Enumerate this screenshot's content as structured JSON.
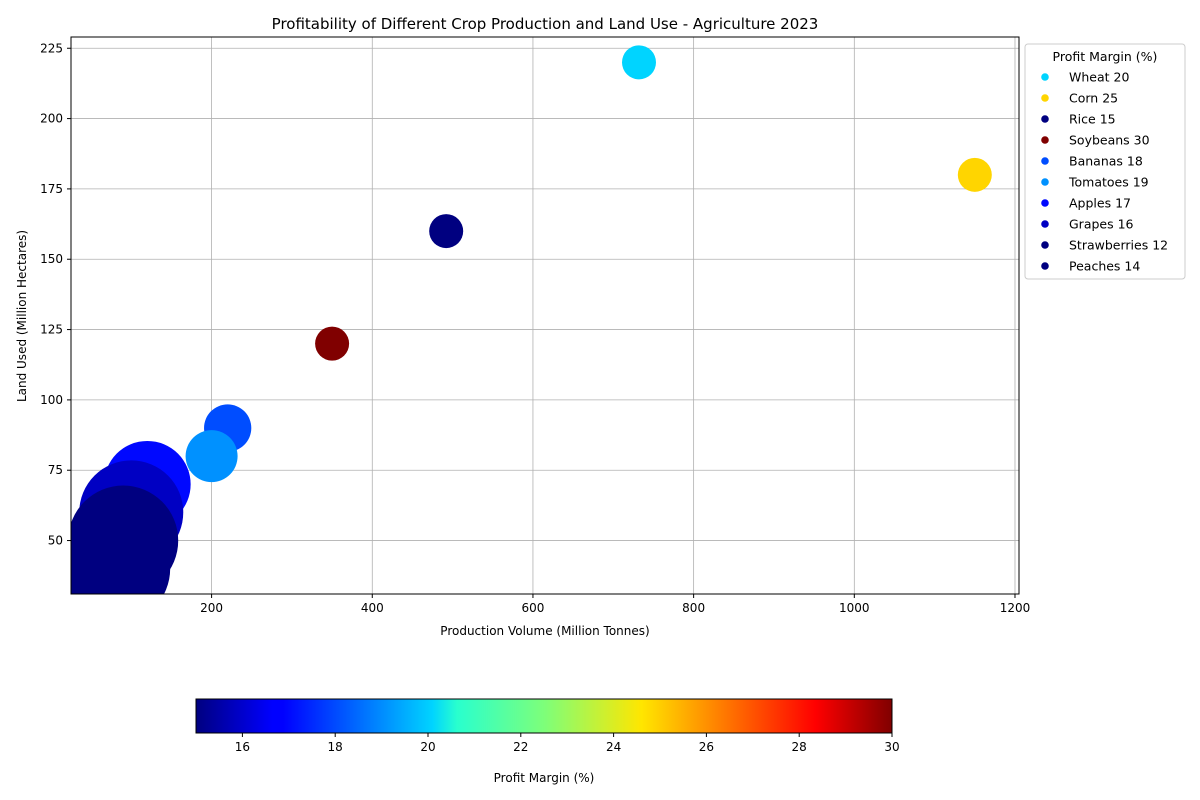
{
  "chart_data": {
    "type": "scatter",
    "title": "Profitability of Different Crop Production and Land Use - Agriculture 2023",
    "xlabel": "Production Volume (Million Tonnes)",
    "ylabel": "Land Used (Million Hectares)",
    "xlim": [
      25,
      1205
    ],
    "ylim": [
      31,
      229
    ],
    "xticks": [
      200,
      400,
      600,
      800,
      1000,
      1200
    ],
    "yticks": [
      50,
      75,
      100,
      125,
      150,
      175,
      200,
      225
    ],
    "grid": true,
    "legend": {
      "title": "Profit Margin (%)",
      "placement": "outside-top-right",
      "entries": [
        "Wheat 20",
        "Corn 25",
        "Rice 15",
        "Soybeans 30",
        "Bananas 18",
        "Tomatoes 19",
        "Apples 17",
        "Grapes 16",
        "Strawberries 12",
        "Peaches 14"
      ]
    },
    "colorbar": {
      "label": "Profit Margin (%)",
      "range": [
        15,
        30
      ],
      "ticks": [
        16,
        18,
        20,
        22,
        24,
        26,
        28,
        30
      ],
      "colormap": "jet",
      "orientation": "horizontal"
    },
    "points": [
      {
        "crop": "Wheat",
        "x": 732,
        "y": 220,
        "profit_margin": 20
      },
      {
        "crop": "Corn",
        "x": 1150,
        "y": 180,
        "profit_margin": 25
      },
      {
        "crop": "Rice",
        "x": 492,
        "y": 160,
        "profit_margin": 15
      },
      {
        "crop": "Soybeans",
        "x": 350,
        "y": 120,
        "profit_margin": 30
      },
      {
        "crop": "Bananas",
        "x": 220,
        "y": 90,
        "profit_margin": 18
      },
      {
        "crop": "Tomatoes",
        "x": 200,
        "y": 80,
        "profit_margin": 19
      },
      {
        "crop": "Apples",
        "x": 120,
        "y": 70,
        "profit_margin": 17
      },
      {
        "crop": "Grapes",
        "x": 100,
        "y": 60,
        "profit_margin": 16
      },
      {
        "crop": "Strawberries",
        "x": 90,
        "y": 50,
        "profit_margin": 12
      },
      {
        "crop": "Peaches",
        "x": 80,
        "y": 40,
        "profit_margin": 14
      }
    ]
  }
}
